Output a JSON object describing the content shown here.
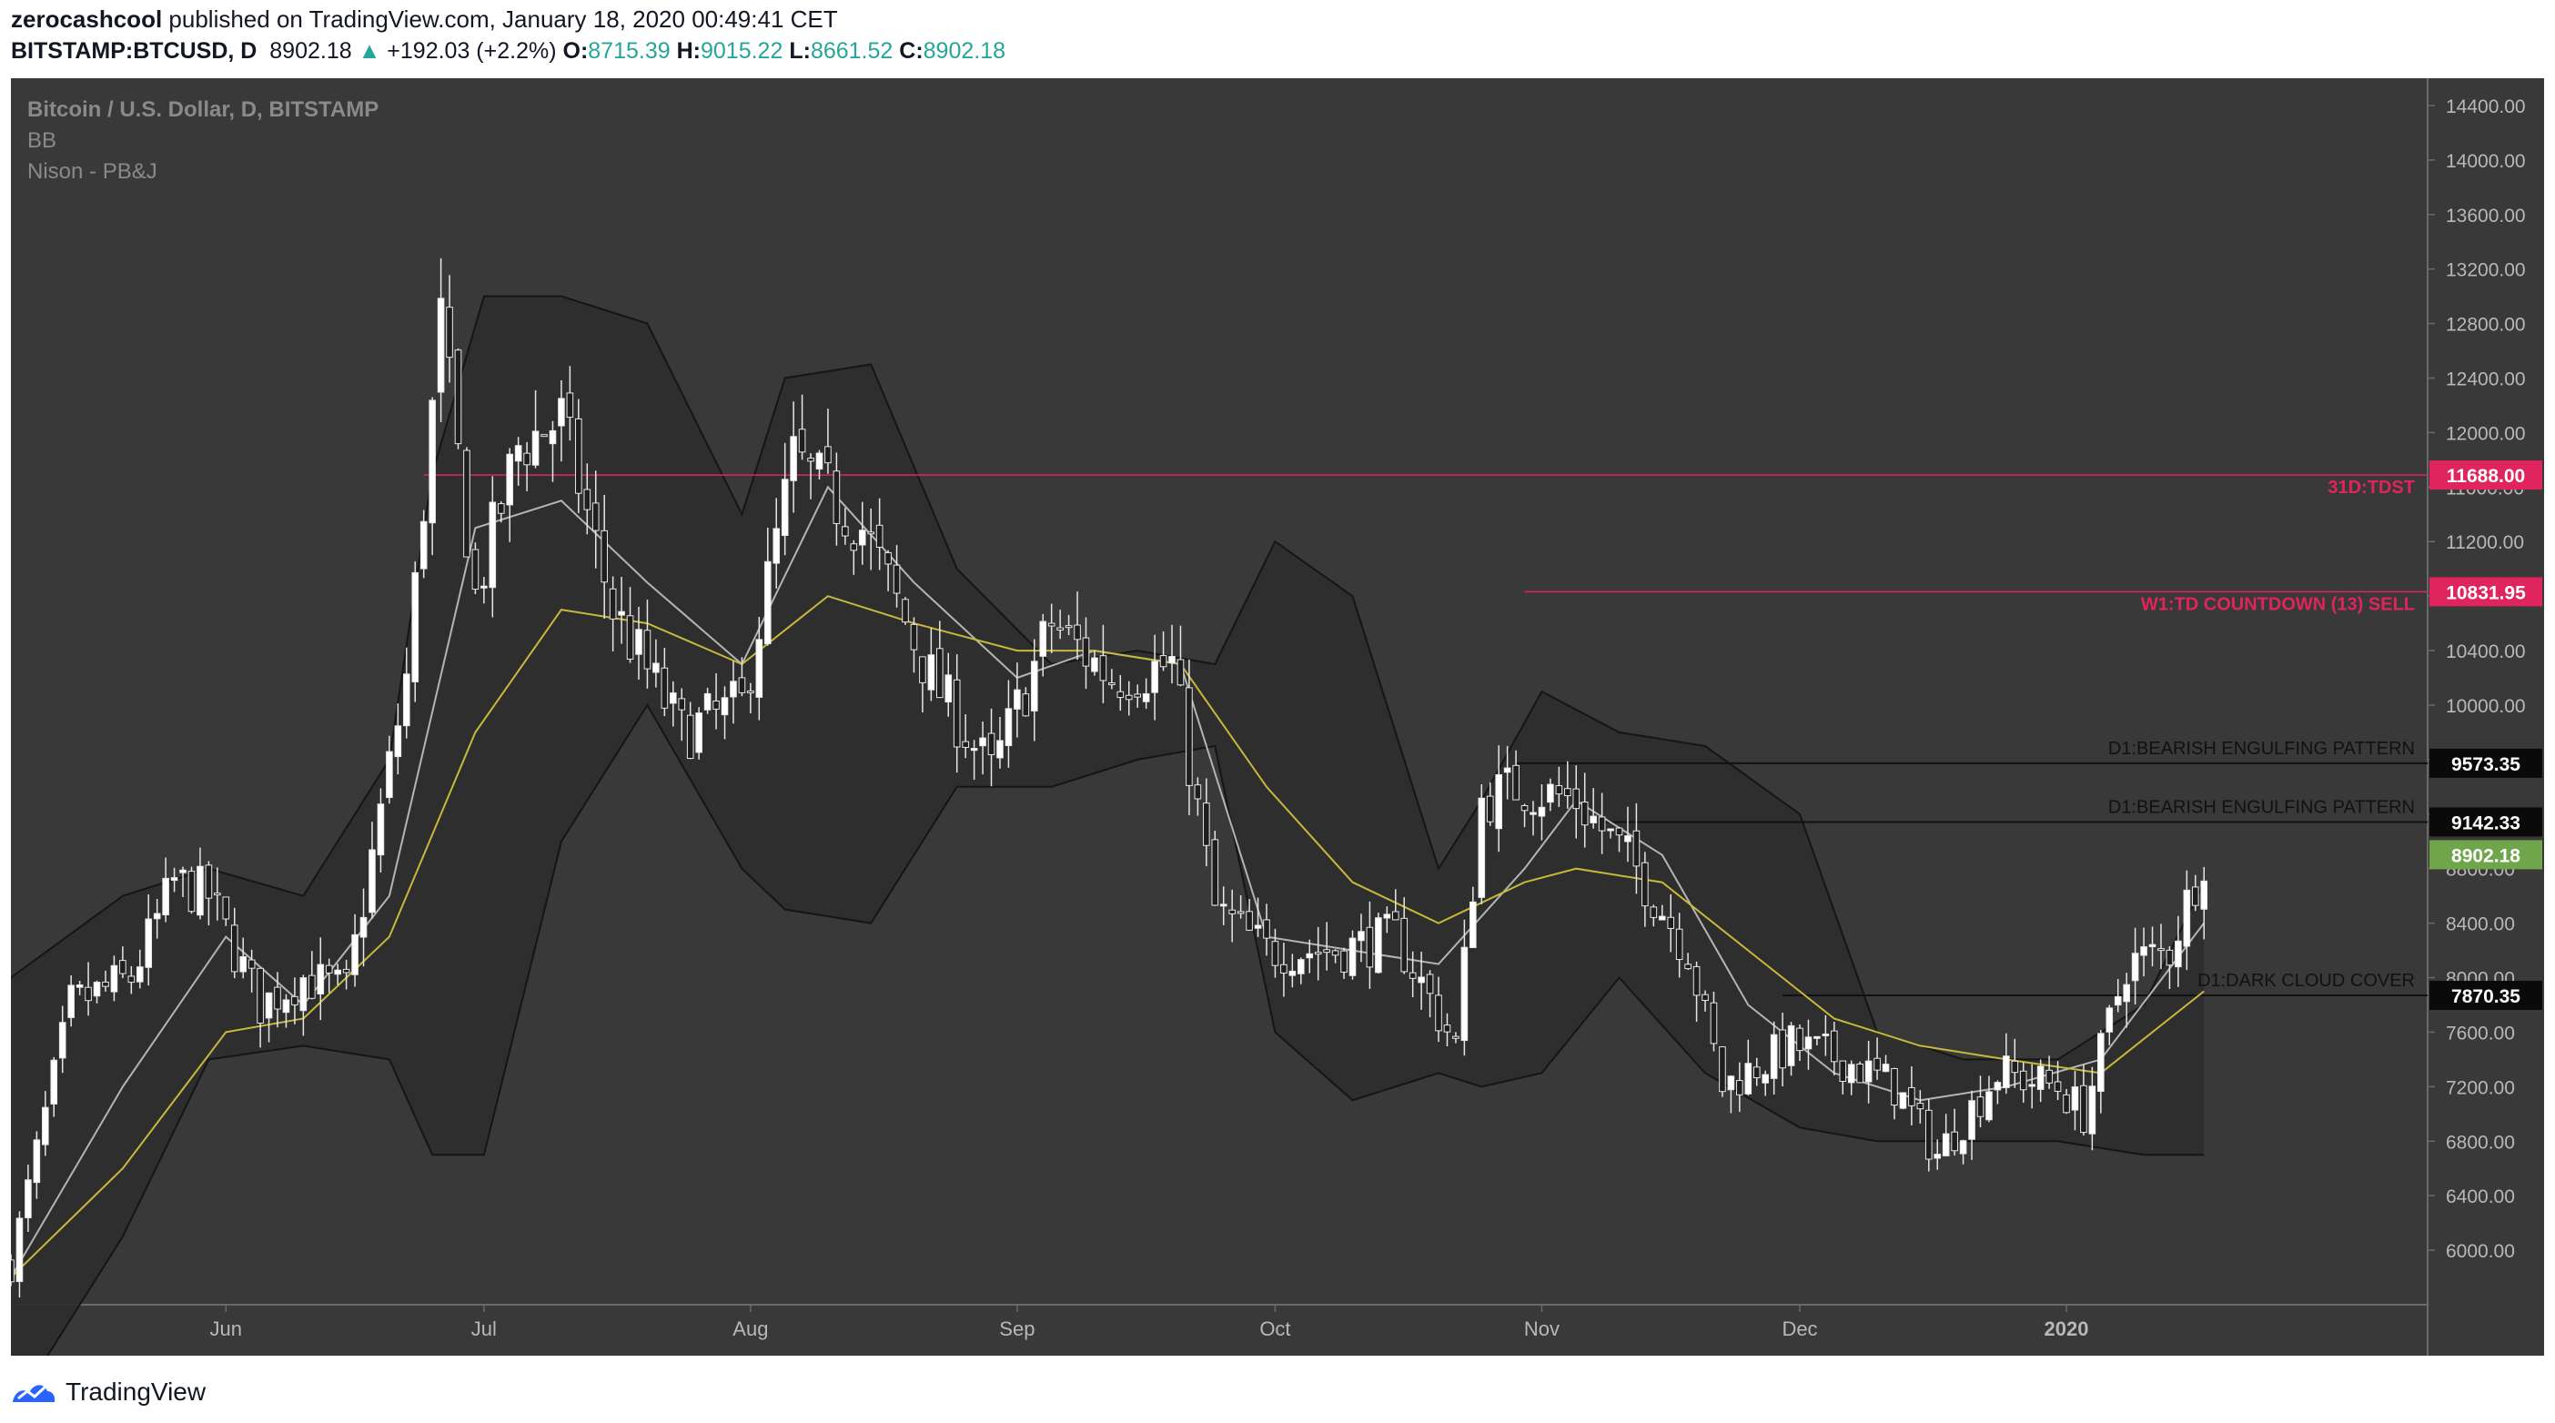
{
  "header": {
    "author": "zerocashcool",
    "published_text": "published on TradingView.com, January 18, 2020 00:49:41 CET",
    "symbol": "BITSTAMP:BTCUSD, D",
    "last": "8902.18",
    "change_icon": "triangle-up-icon",
    "change": "+192.03 (+2.2%)",
    "o_label": "O:",
    "o": "8715.39",
    "h_label": "H:",
    "h": "9015.22",
    "l_label": "L:",
    "l": "8661.52",
    "c_label": "C:",
    "c": "8902.18"
  },
  "legend": {
    "title": "Bitcoin / U.S. Dollar, D, BITSTAMP",
    "indicator1": "BB",
    "indicator2": "Nison - PB&J"
  },
  "footer": {
    "brand": "TradingView",
    "logo_icon": "tradingview-logo-icon"
  },
  "colors": {
    "background": "#393939",
    "bb_fill": "#2e2e2e",
    "candle_up": "#ffffff",
    "candle_down": "#1e1e1e",
    "wick": "#e6e6e6",
    "sma_fast": "#b4b4b4",
    "sma_slow": "#c8b83c",
    "tdst": "#e0245e",
    "last_price_bg": "#6fa64b"
  },
  "chart_data": {
    "type": "candlestick",
    "symbol": "BTCUSD",
    "timeframe": "D",
    "ylim": [
      5600,
      14600
    ],
    "y_ticks": [
      6000,
      6400,
      6800,
      7200,
      7600,
      8000,
      8400,
      8800,
      9200,
      9600,
      10000,
      10400,
      10800,
      11200,
      11600,
      12000,
      12400,
      12800,
      13200,
      13600,
      14000,
      14400
    ],
    "x_labels": [
      {
        "label": "Jun",
        "date": "2019-06-01"
      },
      {
        "label": "Jul",
        "date": "2019-07-01"
      },
      {
        "label": "Aug",
        "date": "2019-08-01"
      },
      {
        "label": "Sep",
        "date": "2019-09-01"
      },
      {
        "label": "Oct",
        "date": "2019-10-01"
      },
      {
        "label": "Nov",
        "date": "2019-11-01"
      },
      {
        "label": "Dec",
        "date": "2019-12-01"
      },
      {
        "label": "2020",
        "date": "2020-01-01"
      }
    ],
    "x_range": [
      "2019-05-07",
      "2020-02-12"
    ],
    "close_path": {
      "dates": [
        "2019-05-07",
        "2019-05-14",
        "2019-05-21",
        "2019-05-26",
        "2019-05-30",
        "2019-06-05",
        "2019-06-10",
        "2019-06-15",
        "2019-06-22",
        "2019-06-26",
        "2019-06-30",
        "2019-07-05",
        "2019-07-10",
        "2019-07-16",
        "2019-07-24",
        "2019-07-31",
        "2019-08-06",
        "2019-08-14",
        "2019-08-22",
        "2019-08-29",
        "2019-09-05",
        "2019-09-12",
        "2019-09-19",
        "2019-09-24",
        "2019-09-30",
        "2019-10-08",
        "2019-10-15",
        "2019-10-22",
        "2019-10-25",
        "2019-10-29",
        "2019-11-05",
        "2019-11-12",
        "2019-11-18",
        "2019-11-22",
        "2019-11-30",
        "2019-12-06",
        "2019-12-12",
        "2019-12-17",
        "2019-12-24",
        "2019-12-31",
        "2020-01-03",
        "2020-01-08",
        "2020-01-13",
        "2020-01-17"
      ],
      "values": [
        5900,
        7800,
        8000,
        8700,
        8600,
        7800,
        8000,
        7900,
        10200,
        12800,
        10800,
        11900,
        12100,
        10700,
        9800,
        10000,
        11800,
        11300,
        10200,
        9500,
        10600,
        10200,
        10300,
        8500,
        8200,
        8200,
        8300,
        7500,
        9300,
        9400,
        9300,
        8800,
        8200,
        7200,
        7500,
        7400,
        7200,
        6700,
        7300,
        7200,
        7000,
        8100,
        8200,
        8900
      ]
    },
    "bollinger_bands": {
      "dates": [
        "2019-05-07",
        "2019-05-20",
        "2019-05-30",
        "2019-06-10",
        "2019-06-20",
        "2019-06-25",
        "2019-07-01",
        "2019-07-10",
        "2019-07-20",
        "2019-07-31",
        "2019-08-05",
        "2019-08-15",
        "2019-08-25",
        "2019-09-05",
        "2019-09-15",
        "2019-09-24",
        "2019-10-01",
        "2019-10-10",
        "2019-10-20",
        "2019-10-25",
        "2019-11-01",
        "2019-11-10",
        "2019-11-20",
        "2019-12-01",
        "2019-12-10",
        "2019-12-20",
        "2019-12-31",
        "2020-01-10",
        "2020-01-17"
      ],
      "upper": [
        8000,
        8600,
        8800,
        8600,
        9600,
        11700,
        13000,
        13000,
        12800,
        11400,
        12400,
        12500,
        11000,
        10300,
        10400,
        10300,
        11200,
        10800,
        8800,
        9300,
        10100,
        9800,
        9700,
        9200,
        7600,
        7400,
        7400,
        7800,
        8700
      ],
      "lower": [
        4800,
        6100,
        7400,
        7500,
        7400,
        6700,
        6700,
        9000,
        10000,
        8800,
        8500,
        8400,
        9400,
        9400,
        9600,
        9700,
        7600,
        7100,
        7300,
        7200,
        7300,
        8000,
        7300,
        6900,
        6800,
        6800,
        6800,
        6700,
        6700
      ]
    },
    "sma_fast": {
      "dates": [
        "2019-05-07",
        "2019-05-20",
        "2019-06-01",
        "2019-06-10",
        "2019-06-20",
        "2019-06-30",
        "2019-07-10",
        "2019-07-20",
        "2019-07-31",
        "2019-08-10",
        "2019-08-20",
        "2019-09-01",
        "2019-09-10",
        "2019-09-20",
        "2019-09-30",
        "2019-10-10",
        "2019-10-20",
        "2019-10-30",
        "2019-11-05",
        "2019-11-15",
        "2019-11-25",
        "2019-12-05",
        "2019-12-15",
        "2019-12-25",
        "2020-01-05",
        "2020-01-17"
      ],
      "values": [
        5800,
        7200,
        8300,
        7800,
        8600,
        11300,
        11500,
        10900,
        10300,
        11600,
        10900,
        10200,
        10400,
        10300,
        8300,
        8200,
        8100,
        8800,
        9300,
        8900,
        7800,
        7300,
        7100,
        7200,
        7400,
        8400
      ]
    },
    "sma_slow": {
      "dates": [
        "2019-05-07",
        "2019-05-20",
        "2019-06-01",
        "2019-06-10",
        "2019-06-20",
        "2019-06-30",
        "2019-07-10",
        "2019-07-20",
        "2019-07-31",
        "2019-08-10",
        "2019-08-20",
        "2019-09-01",
        "2019-09-10",
        "2019-09-20",
        "2019-09-30",
        "2019-10-10",
        "2019-10-20",
        "2019-10-30",
        "2019-11-05",
        "2019-11-15",
        "2019-11-25",
        "2019-12-05",
        "2019-12-15",
        "2019-12-25",
        "2020-01-05",
        "2020-01-17"
      ],
      "values": [
        5800,
        6600,
        7600,
        7700,
        8300,
        9800,
        10700,
        10600,
        10300,
        10800,
        10600,
        10400,
        10400,
        10300,
        9400,
        8700,
        8400,
        8700,
        8800,
        8700,
        8200,
        7700,
        7500,
        7400,
        7300,
        7900
      ]
    },
    "horizontal_levels": [
      {
        "label": "31D:TDST",
        "value": 11688.0,
        "price_label": "11688.00",
        "style": "tdst",
        "x_start": "2019-06-24"
      },
      {
        "label": "W1:TD COUNTDOWN (13) SELL",
        "value": 10831.95,
        "price_label": "10831.95",
        "style": "tdst",
        "x_start": "2019-10-30"
      },
      {
        "label": "D1:BEARISH ENGULFING PATTERN",
        "value": 9573.35,
        "price_label": "9573.35",
        "style": "pattern",
        "x_start": "2019-10-29"
      },
      {
        "label": "D1:BEARISH ENGULFING PATTERN",
        "value": 9142.33,
        "price_label": "9142.33",
        "style": "pattern",
        "x_start": "2019-11-08"
      },
      {
        "label": "D1:DARK CLOUD COVER",
        "value": 7870.35,
        "price_label": "7870.35",
        "style": "pattern",
        "x_start": "2019-11-29"
      }
    ],
    "last_price": {
      "value": 8902.18,
      "label": "8902.18"
    }
  }
}
